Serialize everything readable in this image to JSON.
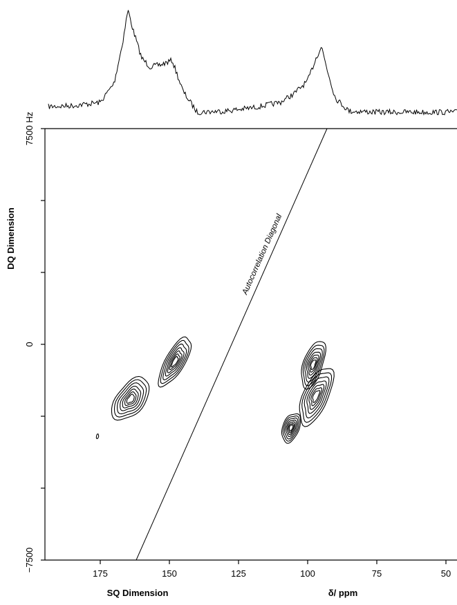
{
  "chart_data": {
    "type": "2d-nmr-contour",
    "x_axis": {
      "label": "SQ Dimension",
      "unit_label": "δ/ ppm",
      "range": [
        195,
        46
      ],
      "ticks": [
        175,
        150,
        125,
        100,
        75,
        50
      ],
      "tick_labels": [
        "175",
        "150",
        "125",
        "100",
        "75",
        "50"
      ]
    },
    "y_axis": {
      "label": "DQ Dimension",
      "range": [
        -7500,
        7500
      ],
      "ticks": [
        7500,
        5000,
        2500,
        0,
        -2500,
        -5000,
        -7500
      ],
      "tick_labels": [
        "7500 Hz",
        "",
        "",
        "0",
        "",
        "",
        "−7500"
      ]
    },
    "diagonal": {
      "label": "Autocorrelation Diagonal",
      "points": [
        [
          162,
          -7500
        ],
        [
          93,
          7500
        ]
      ]
    },
    "projection_1d": {
      "x": [
        195,
        185,
        175,
        170,
        167,
        165,
        163,
        160,
        157,
        153,
        149,
        145,
        140,
        130,
        120,
        110,
        105,
        100,
        97,
        95,
        93,
        90,
        85,
        75,
        65,
        55,
        46
      ],
      "intensity": [
        0.1,
        0.11,
        0.14,
        0.32,
        0.68,
        1.0,
        0.8,
        0.55,
        0.47,
        0.49,
        0.53,
        0.24,
        0.05,
        0.06,
        0.09,
        0.14,
        0.22,
        0.34,
        0.55,
        0.66,
        0.45,
        0.18,
        0.06,
        0.05,
        0.05,
        0.05,
        0.05
      ]
    },
    "peaks": [
      {
        "sq_ppm": 164,
        "dq_hz": -1900
      },
      {
        "sq_ppm": 148,
        "dq_hz": -600
      },
      {
        "sq_ppm": 97,
        "dq_hz": -1800
      },
      {
        "sq_ppm": 98,
        "dq_hz": -700
      },
      {
        "sq_ppm": 106,
        "dq_hz": -2900
      }
    ],
    "noise_peaks": [
      {
        "sq_ppm": 176,
        "dq_hz": -3200
      }
    ],
    "contour_levels": [
      1,
      0.85,
      0.7,
      0.55,
      0.42,
      0.3,
      0.2
    ]
  }
}
